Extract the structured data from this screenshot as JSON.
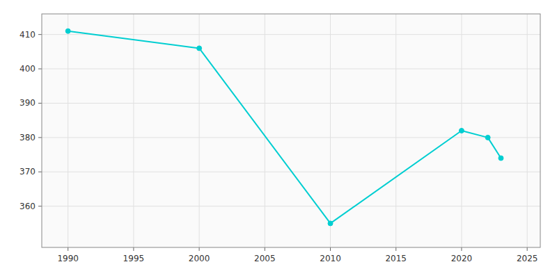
{
  "chart_data": {
    "type": "line",
    "x": [
      1990,
      2000,
      2010,
      2020,
      2022,
      2023
    ],
    "values": [
      411,
      406,
      355,
      382,
      380,
      374
    ],
    "color": "#00CED1",
    "marker": "circle",
    "xlim": [
      1988,
      2026
    ],
    "ylim": [
      348,
      416
    ],
    "xticks": [
      1990,
      1995,
      2000,
      2005,
      2010,
      2015,
      2020,
      2025
    ],
    "yticks": [
      360,
      370,
      380,
      390,
      400,
      410
    ],
    "grid": true
  }
}
